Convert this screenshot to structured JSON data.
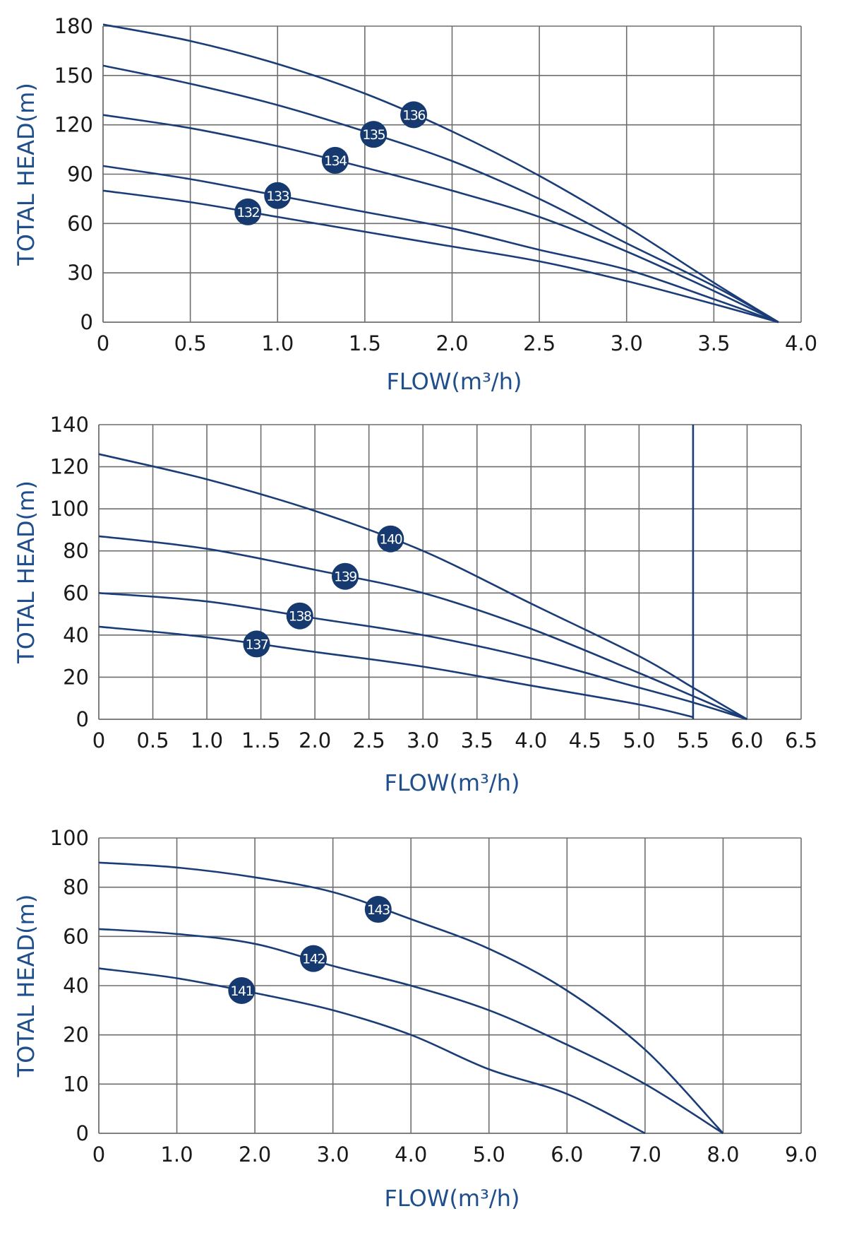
{
  "colors": {
    "curve": "#1a3d78",
    "marker": "#163a70",
    "axis_title": "#1f4e8c",
    "grid": "#6e6e6e"
  },
  "chart_data": [
    {
      "type": "line",
      "xlabel": "FLOW(m³/h)",
      "ylabel": "TOTAL HEAD(m)",
      "xlim": [
        0,
        4.0
      ],
      "ylim": [
        0,
        180
      ],
      "x_ticks": [
        0,
        0.5,
        1.0,
        1.5,
        2.0,
        2.5,
        3.0,
        3.5,
        4.0
      ],
      "x_tick_labels": [
        "0",
        "0.5",
        "1.0",
        "1.5",
        "2.0",
        "2.5",
        "3.0",
        "3.5",
        "4.0"
      ],
      "y_ticks": [
        0,
        30,
        60,
        90,
        120,
        150,
        180
      ],
      "y_tick_labels": [
        "0",
        "30",
        "60",
        "90",
        "120",
        "150",
        "180"
      ],
      "grid": true,
      "series": [
        {
          "name": "132",
          "label_x": 0.83,
          "points": [
            [
              0,
              80
            ],
            [
              0.5,
              73
            ],
            [
              1.0,
              64
            ],
            [
              1.5,
              55
            ],
            [
              2.0,
              46
            ],
            [
              2.5,
              37
            ],
            [
              3.0,
              25
            ],
            [
              3.5,
              11
            ],
            [
              3.87,
              0
            ]
          ]
        },
        {
          "name": "133",
          "label_x": 1.0,
          "points": [
            [
              0,
              95
            ],
            [
              0.5,
              87
            ],
            [
              1.0,
              77
            ],
            [
              1.5,
              67
            ],
            [
              2.0,
              57
            ],
            [
              2.5,
              44
            ],
            [
              3.0,
              32
            ],
            [
              3.5,
              14
            ],
            [
              3.87,
              0
            ]
          ]
        },
        {
          "name": "134",
          "label_x": 1.33,
          "points": [
            [
              0,
              126
            ],
            [
              0.5,
              118
            ],
            [
              1.0,
              107
            ],
            [
              1.5,
              94
            ],
            [
              2.0,
              80
            ],
            [
              2.5,
              64
            ],
            [
              3.0,
              43
            ],
            [
              3.5,
              19
            ],
            [
              3.87,
              0
            ]
          ]
        },
        {
          "name": "135",
          "label_x": 1.55,
          "points": [
            [
              0,
              156
            ],
            [
              0.5,
              145
            ],
            [
              1.0,
              132
            ],
            [
              1.5,
              116
            ],
            [
              2.0,
              98
            ],
            [
              2.5,
              75
            ],
            [
              3.0,
              48
            ],
            [
              3.5,
              22
            ],
            [
              3.87,
              0
            ]
          ]
        },
        {
          "name": "136",
          "label_x": 1.78,
          "points": [
            [
              0,
              181
            ],
            [
              0.5,
              171
            ],
            [
              1.0,
              157
            ],
            [
              1.5,
              139
            ],
            [
              2.0,
              116
            ],
            [
              2.5,
              89
            ],
            [
              3.0,
              58
            ],
            [
              3.5,
              24
            ],
            [
              3.87,
              0
            ]
          ]
        }
      ]
    },
    {
      "type": "line",
      "xlabel": "FLOW(m³/h)",
      "ylabel": "TOTAL HEAD(m)",
      "xlim": [
        0,
        6.5
      ],
      "ylim": [
        0,
        140
      ],
      "x_ticks": [
        0,
        0.5,
        1.0,
        1.5,
        2.0,
        2.5,
        3.0,
        3.5,
        4.0,
        4.5,
        5.0,
        5.5,
        6.0,
        6.5
      ],
      "x_tick_labels": [
        "0",
        "0.5",
        "1.0",
        "1..5",
        "2.0",
        "2.5",
        "3.0",
        "3.5",
        "4.0",
        "4.5",
        "5.0",
        "5.5",
        "6.0",
        "6.5"
      ],
      "y_ticks": [
        0,
        20,
        40,
        60,
        80,
        100,
        120,
        140
      ],
      "y_tick_labels": [
        "0",
        "20",
        "40",
        "60",
        "80",
        "100",
        "120",
        "140"
      ],
      "grid": true,
      "vertical_line_x": 5.5,
      "series": [
        {
          "name": "137",
          "label_x": 1.46,
          "points": [
            [
              0,
              44
            ],
            [
              1.0,
              39
            ],
            [
              2.0,
              32
            ],
            [
              3.0,
              25
            ],
            [
              4.0,
              16
            ],
            [
              5.0,
              7
            ],
            [
              5.5,
              1
            ]
          ]
        },
        {
          "name": "138",
          "label_x": 1.86,
          "points": [
            [
              0,
              60
            ],
            [
              1.0,
              56
            ],
            [
              2.0,
              48
            ],
            [
              3.0,
              40
            ],
            [
              4.0,
              29
            ],
            [
              5.0,
              15
            ],
            [
              5.5,
              8
            ],
            [
              6.0,
              0
            ]
          ]
        },
        {
          "name": "139",
          "label_x": 2.28,
          "points": [
            [
              0,
              87
            ],
            [
              1.0,
              81
            ],
            [
              2.0,
              71
            ],
            [
              3.0,
              60
            ],
            [
              4.0,
              43
            ],
            [
              5.0,
              22
            ],
            [
              5.5,
              11
            ],
            [
              6.0,
              0
            ]
          ]
        },
        {
          "name": "140",
          "label_x": 2.7,
          "points": [
            [
              0,
              126
            ],
            [
              1.0,
              114
            ],
            [
              2.0,
              99
            ],
            [
              3.0,
              80
            ],
            [
              4.0,
              55
            ],
            [
              5.0,
              30
            ],
            [
              5.5,
              15
            ],
            [
              6.0,
              0
            ]
          ]
        }
      ]
    },
    {
      "type": "line",
      "xlabel": "FLOW(m³/h)",
      "ylabel": "TOTAL HEAD(m)",
      "xlim": [
        0,
        9.0
      ],
      "ylim": [
        0,
        100
      ],
      "x_ticks": [
        0,
        1.0,
        2.0,
        3.0,
        4.0,
        5.0,
        6.0,
        7.0,
        8.0,
        9.0
      ],
      "x_tick_labels": [
        "0",
        "1.0",
        "2.0",
        "3.0",
        "4.0",
        "5.0",
        "6.0",
        "7.0",
        "8.0",
        "9.0"
      ],
      "y_ticks": [
        0,
        10,
        20,
        40,
        60,
        80,
        100
      ],
      "y_tick_labels": [
        "0",
        "10",
        "20",
        "40",
        "60",
        "80",
        "100"
      ],
      "y_tick_positions": [
        0,
        1,
        2,
        3,
        4,
        5,
        6
      ],
      "grid": true,
      "series": [
        {
          "name": "141",
          "label_x": 1.83,
          "label_y": 38,
          "points": [
            [
              0,
              47
            ],
            [
              1.0,
              43
            ],
            [
              2.0,
              37
            ],
            [
              3.0,
              30
            ],
            [
              4.0,
              20
            ],
            [
              5.0,
              13
            ],
            [
              6.0,
              8
            ],
            [
              7.0,
              0
            ]
          ]
        },
        {
          "name": "142",
          "label_x": 2.75,
          "label_y": 51,
          "points": [
            [
              0,
              63
            ],
            [
              1.0,
              61
            ],
            [
              2.0,
              57
            ],
            [
              3.0,
              48
            ],
            [
              4.0,
              40
            ],
            [
              5.0,
              30
            ],
            [
              6.0,
              18
            ],
            [
              7.0,
              10
            ],
            [
              8.0,
              0
            ]
          ]
        },
        {
          "name": "143",
          "label_x": 3.58,
          "label_y": 71,
          "points": [
            [
              0,
              90
            ],
            [
              1.0,
              88
            ],
            [
              2.0,
              84
            ],
            [
              3.0,
              78
            ],
            [
              4.0,
              67
            ],
            [
              5.0,
              55
            ],
            [
              6.0,
              38
            ],
            [
              7.0,
              17
            ],
            [
              8.0,
              0
            ]
          ]
        }
      ]
    }
  ]
}
